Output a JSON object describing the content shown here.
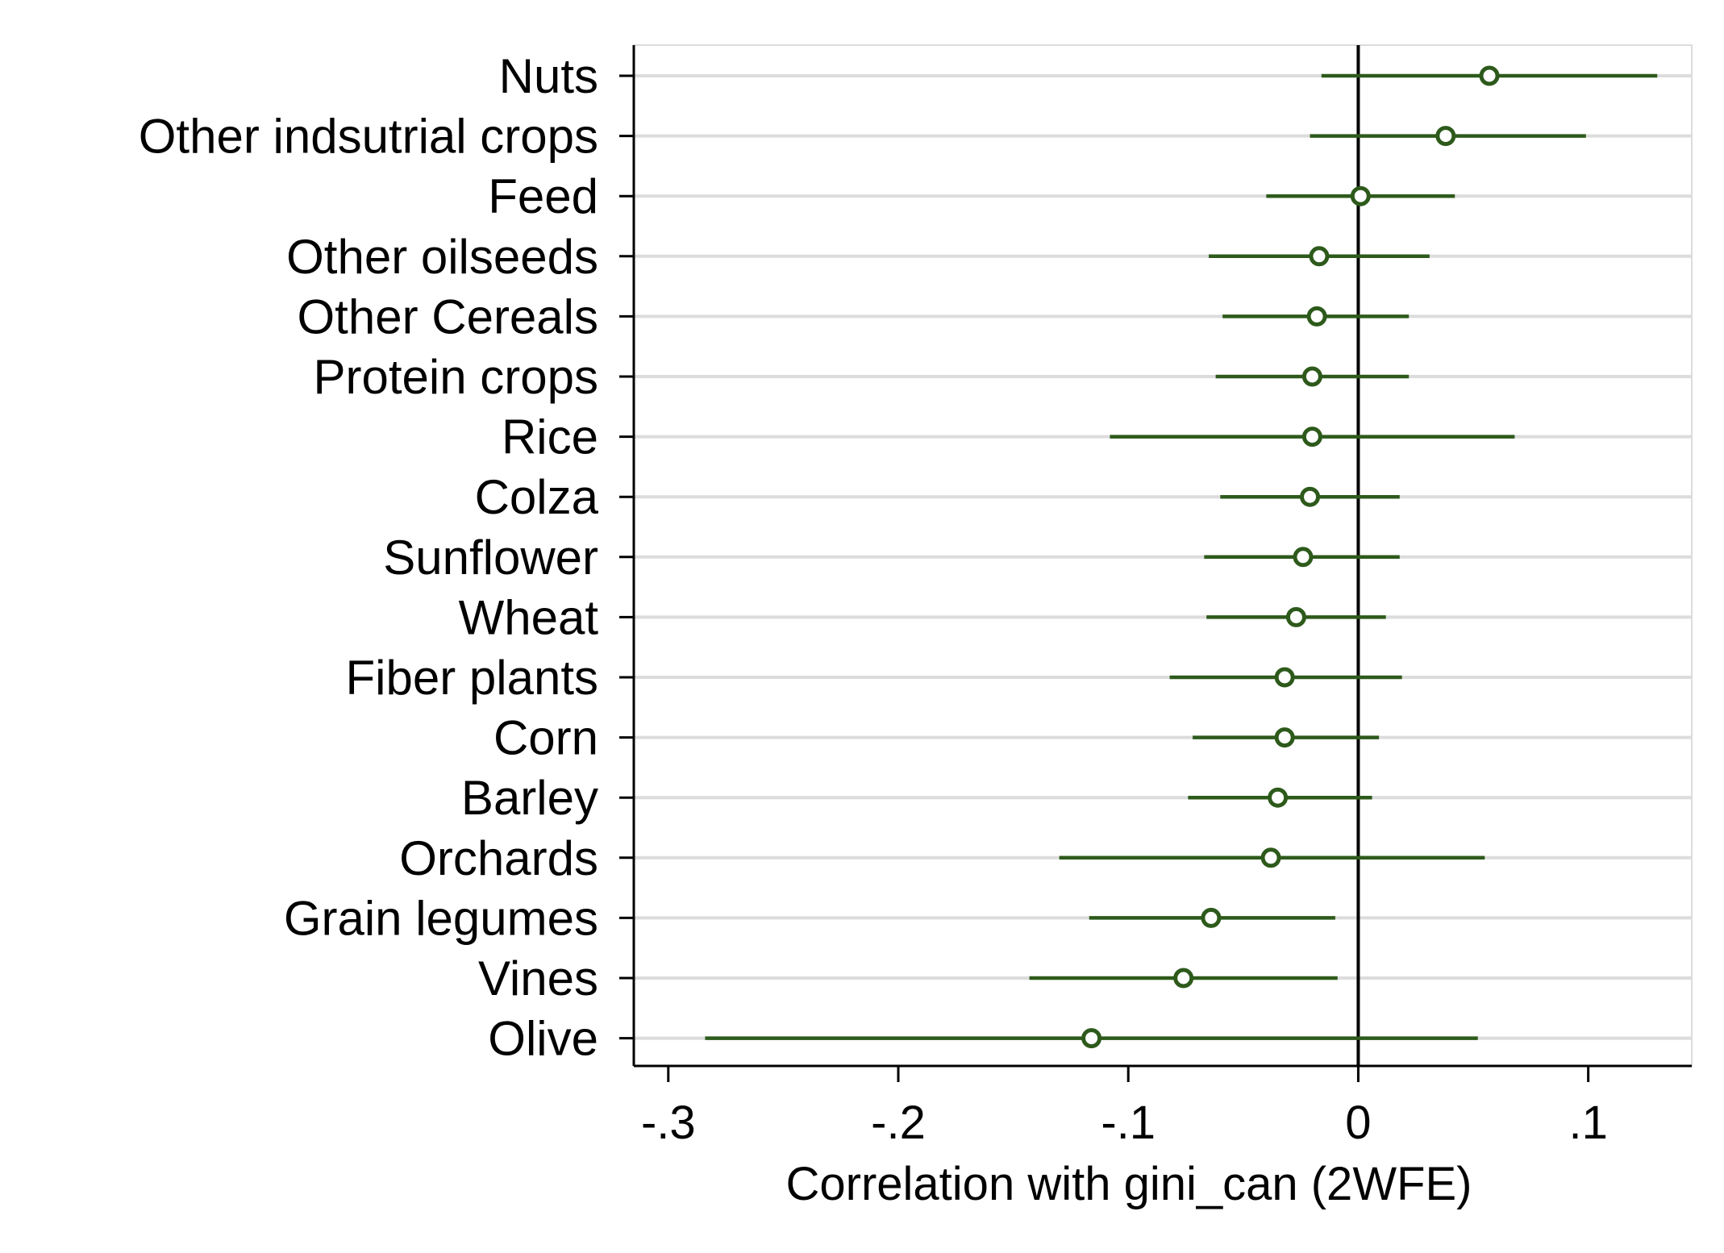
{
  "chart_data": {
    "type": "coefficient-plot",
    "orientation": "horizontal",
    "xlabel": "Correlation with gini_can (2WFE)",
    "ylabel": "",
    "xlim": [
      -0.315,
      0.145
    ],
    "x_ticks": [
      {
        "value": -0.3,
        "label": "-.3"
      },
      {
        "value": -0.2,
        "label": "-.2"
      },
      {
        "value": -0.1,
        "label": "-.1"
      },
      {
        "value": 0,
        "label": "0"
      },
      {
        "value": 0.1,
        "label": ".1"
      }
    ],
    "reference_line": 0,
    "grid": true,
    "colors": {
      "series": "#2d5a1b",
      "grid": "#dcdcdc",
      "axis": "#000000",
      "marker_fill": "#ffffff"
    },
    "categories": [
      {
        "label": "Nuts",
        "estimate": 0.057,
        "ci_low": -0.016,
        "ci_high": 0.13
      },
      {
        "label": "Other indsutrial crops",
        "estimate": 0.038,
        "ci_low": -0.021,
        "ci_high": 0.099
      },
      {
        "label": "Feed",
        "estimate": 0.001,
        "ci_low": -0.04,
        "ci_high": 0.042
      },
      {
        "label": "Other oilseeds",
        "estimate": -0.017,
        "ci_low": -0.065,
        "ci_high": 0.031
      },
      {
        "label": "Other Cereals",
        "estimate": -0.018,
        "ci_low": -0.059,
        "ci_high": 0.022
      },
      {
        "label": "Protein crops",
        "estimate": -0.02,
        "ci_low": -0.062,
        "ci_high": 0.022
      },
      {
        "label": "Rice",
        "estimate": -0.02,
        "ci_low": -0.108,
        "ci_high": 0.068
      },
      {
        "label": "Colza",
        "estimate": -0.021,
        "ci_low": -0.06,
        "ci_high": 0.018
      },
      {
        "label": "Sunflower",
        "estimate": -0.024,
        "ci_low": -0.067,
        "ci_high": 0.018
      },
      {
        "label": "Wheat",
        "estimate": -0.027,
        "ci_low": -0.066,
        "ci_high": 0.012
      },
      {
        "label": "Fiber plants",
        "estimate": -0.032,
        "ci_low": -0.082,
        "ci_high": 0.019
      },
      {
        "label": "Corn",
        "estimate": -0.032,
        "ci_low": -0.072,
        "ci_high": 0.009
      },
      {
        "label": "Barley",
        "estimate": -0.035,
        "ci_low": -0.074,
        "ci_high": 0.006
      },
      {
        "label": "Orchards",
        "estimate": -0.038,
        "ci_low": -0.13,
        "ci_high": 0.055
      },
      {
        "label": "Grain legumes",
        "estimate": -0.064,
        "ci_low": -0.117,
        "ci_high": -0.01
      },
      {
        "label": "Vines",
        "estimate": -0.076,
        "ci_low": -0.143,
        "ci_high": -0.009
      },
      {
        "label": "Olive",
        "estimate": -0.116,
        "ci_low": -0.284,
        "ci_high": 0.052
      }
    ]
  }
}
